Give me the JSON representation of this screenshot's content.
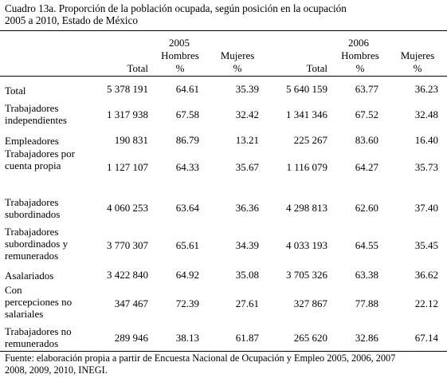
{
  "title": {
    "line1": "Cuadro 13a. Proporción de la población ocupada, según posición en la ocupación",
    "line2": "2005 a 2010, Estado de México"
  },
  "header": {
    "year_a": "2005",
    "year_b": "2006",
    "total": "Total",
    "hombres": "Hombres",
    "mujeres": "Mujeres",
    "pct": "%"
  },
  "rows": [
    {
      "label": "Total",
      "t05": "5 378 191",
      "h05": "64.61",
      "m05": "35.39",
      "t06": "5 640 159",
      "h06": "63.77",
      "m06": "36.23"
    },
    {
      "label": "Trabajadores independientes",
      "t05": "1 317 938",
      "h05": "67.58",
      "m05": "32.42",
      "t06": "1 341 346",
      "h06": "67.52",
      "m06": "32.48"
    },
    {
      "label": "Empleadores",
      "t05": "190 831",
      "h05": "86.79",
      "m05": "13.21",
      "t06": "225 267",
      "h06": "83.60",
      "m06": "16.40"
    },
    {
      "label": "Trabajadores por cuenta propia",
      "t05": "1 127 107",
      "h05": "64.33",
      "m05": "35.67",
      "t06": "1 116 079",
      "h06": "64.27",
      "m06": "35.73"
    },
    {
      "label": "Trabajadores subordinados",
      "t05": "4 060 253",
      "h05": "63.64",
      "m05": "36.36",
      "t06": "4 298 813",
      "h06": "62.60",
      "m06": "37.40"
    },
    {
      "label": "Trabajadores subordinados y remunerados",
      "t05": "3 770 307",
      "h05": "65.61",
      "m05": "34.39",
      "t06": "4 033 193",
      "h06": "64.55",
      "m06": "35.45"
    },
    {
      "label": "Asalariados",
      "t05": "3 422 840",
      "h05": "64.92",
      "m05": "35.08",
      "t06": "3 705 326",
      "h06": "63.38",
      "m06": "36.62"
    },
    {
      "label": "Con percepciones no salariales",
      "t05": "347 467",
      "h05": "72.39",
      "m05": "27.61",
      "t06": "327 867",
      "h06": "77.88",
      "m06": "22.12"
    },
    {
      "label": "Trabajadores no remunerados",
      "t05": "289 946",
      "h05": "38.13",
      "m05": "61.87",
      "t06": "265 620",
      "h06": "32.86",
      "m06": "67.14"
    }
  ],
  "source": {
    "line1": "Fuente: elaboración propia a partir de Encuesta Nacional de Ocupación y Empleo 2005, 2006, 2007",
    "line2": "2008, 2009, 2010, INEGI."
  }
}
